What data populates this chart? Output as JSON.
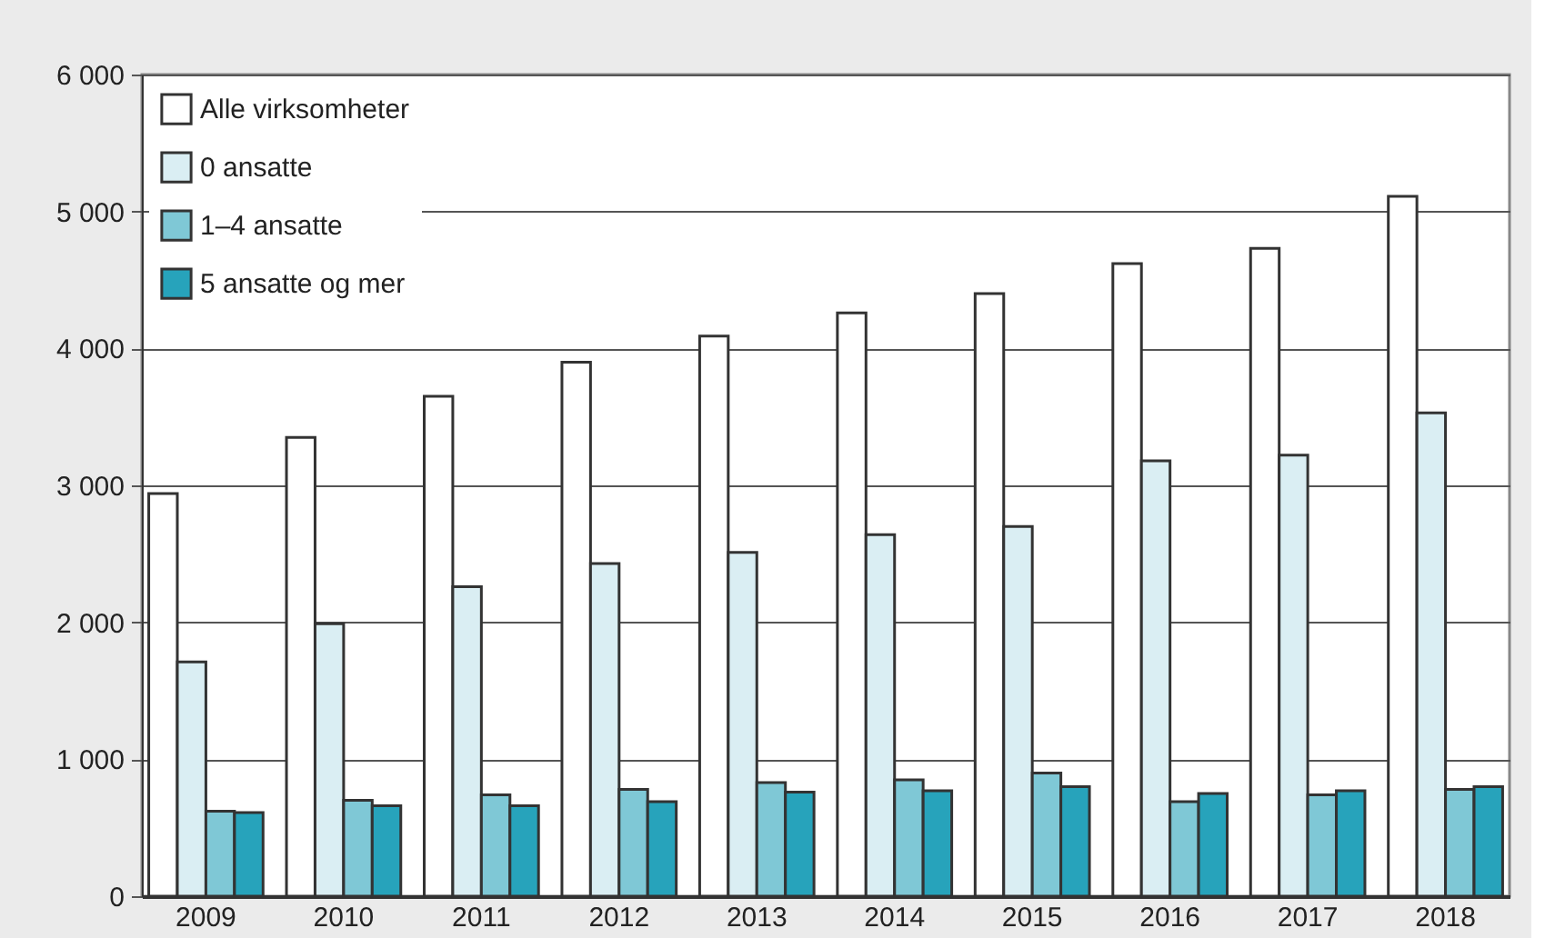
{
  "chart_data": {
    "type": "bar",
    "categories": [
      "2009",
      "2010",
      "2011",
      "2012",
      "2013",
      "2014",
      "2015",
      "2016",
      "2017",
      "2018"
    ],
    "series": [
      {
        "name": "Alle virksomheter",
        "color": "#ffffff",
        "values": [
          2940,
          3350,
          3650,
          3900,
          4090,
          4260,
          4400,
          4620,
          4730,
          5110
        ]
      },
      {
        "name": "0 ansatte",
        "color": "#daeef3",
        "values": [
          1710,
          1990,
          2260,
          2430,
          2510,
          2640,
          2700,
          3180,
          3220,
          3530
        ]
      },
      {
        "name": "1–4 ansatte",
        "color": "#7fc8d6",
        "values": [
          620,
          700,
          740,
          780,
          830,
          850,
          900,
          690,
          740,
          780
        ]
      },
      {
        "name": "5 ansatte og mer",
        "color": "#27a3bb",
        "values": [
          610,
          660,
          660,
          690,
          760,
          770,
          800,
          750,
          770,
          800
        ]
      }
    ],
    "ylim": [
      0,
      6000
    ],
    "yticks": [
      0,
      {
        "value": 1000,
        "label": "1 000"
      },
      {
        "value": 2000,
        "label": "2 000"
      },
      {
        "value": 3000,
        "label": "3 000"
      },
      {
        "value": 4000,
        "label": "4 000"
      },
      {
        "value": 5000,
        "label": "5 000"
      },
      {
        "value": 6000,
        "label": "6 000"
      }
    ],
    "grid": "y",
    "legend": "top left"
  }
}
